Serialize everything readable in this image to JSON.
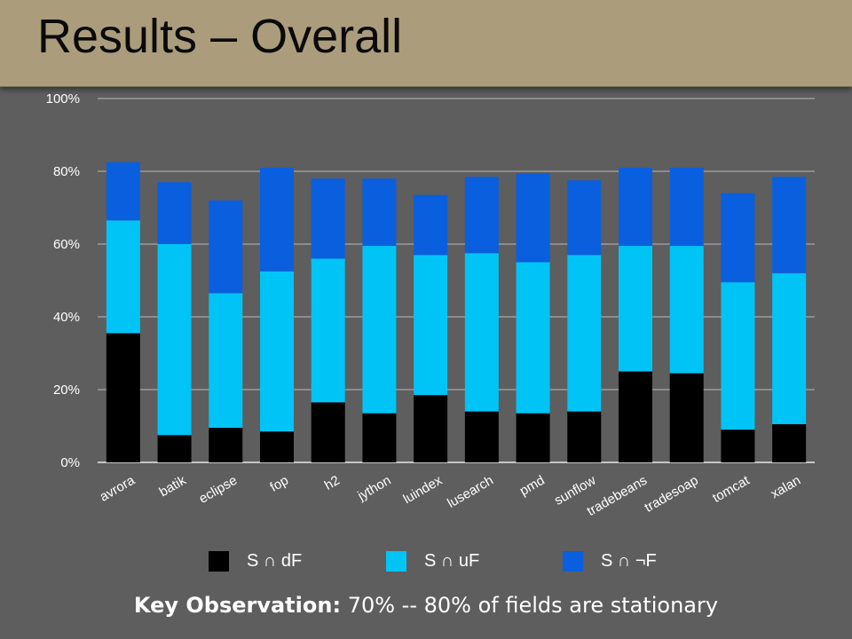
{
  "slide": {
    "title": "Results – Overall",
    "observation_label": "Key Observation:",
    "observation_text": " 70% -- 80% of fields are stationary"
  },
  "chart_data": {
    "type": "bar",
    "stacked": true,
    "categories": [
      "avrora",
      "batik",
      "eclipse",
      "fop",
      "h2",
      "jython",
      "luindex",
      "lusearch",
      "pmd",
      "sunflow",
      "tradebeans",
      "tradesoap",
      "tomcat",
      "xalan"
    ],
    "series": [
      {
        "name": "S ∩ dF",
        "color": "#000000",
        "values": [
          35.5,
          7.5,
          9.5,
          8.5,
          16.5,
          13.5,
          18.5,
          14.0,
          13.5,
          14.0,
          25.0,
          24.5,
          9.0,
          10.5
        ]
      },
      {
        "name": "S ∩ uF",
        "color": "#00c4f5",
        "values": [
          31.0,
          52.5,
          37.0,
          44.0,
          39.5,
          46.0,
          38.5,
          43.5,
          41.5,
          43.0,
          34.5,
          35.0,
          40.5,
          41.5
        ]
      },
      {
        "name": "S ∩ ¬F",
        "color": "#0a5fde",
        "values": [
          16.0,
          17.0,
          25.5,
          28.5,
          22.0,
          18.5,
          16.5,
          21.0,
          24.5,
          20.5,
          21.5,
          21.5,
          24.5,
          26.5
        ]
      }
    ],
    "yticks": [
      "0%",
      "20%",
      "40%",
      "60%",
      "80%",
      "100%"
    ],
    "ylim": [
      0,
      100
    ],
    "grid": true,
    "legend_position": "bottom"
  }
}
